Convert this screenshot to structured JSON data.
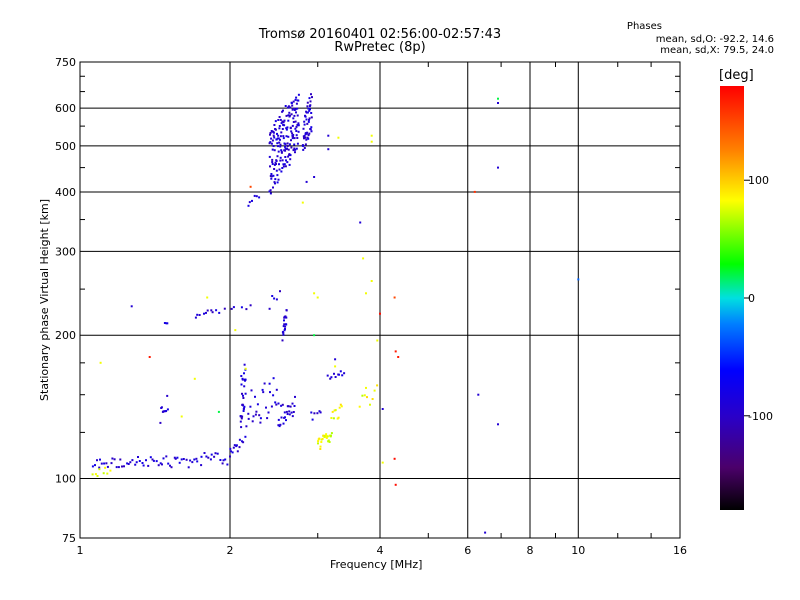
{
  "chart_data": {
    "type": "scatter",
    "title": "Tromsø 20160401 02:56:00-02:57:43",
    "subtitle": "RwPretec (8p)",
    "xlabel": "Frequency [MHz]",
    "ylabel": "Stationary phase Virtual Height [km]",
    "x_scale": "log",
    "y_scale": "log",
    "xlim": [
      1,
      16
    ],
    "ylim": [
      75,
      750
    ],
    "x_ticks": [
      "1",
      "2",
      "4",
      "6",
      "8",
      "10",
      "16"
    ],
    "x_tick_values": [
      1,
      2,
      4,
      6,
      8,
      10,
      16
    ],
    "y_ticks": [
      "75",
      "100",
      "200",
      "300",
      "400",
      "500",
      "600",
      "750"
    ],
    "y_tick_values": [
      75,
      100,
      200,
      300,
      400,
      500,
      600,
      750
    ],
    "grid": true,
    "colorbar": {
      "label": "[deg]",
      "ticks": [
        "100",
        "0",
        "-100"
      ],
      "tick_values": [
        100,
        0,
        -100
      ],
      "range": [
        -180,
        180
      ]
    },
    "stats": {
      "title": "Phases",
      "line1": "mean, sd,O: -92.2, 14.6",
      "line2": "mean, sd,X: 79.5, 24.0"
    },
    "series": [
      {
        "mode": "O",
        "phase_deg": -92,
        "segments": [
          {
            "x0": 1.06,
            "x1": 2.0,
            "y0": 104,
            "y1": 113,
            "n": 70,
            "spread": 3
          },
          {
            "x0": 2.0,
            "x1": 2.12,
            "y0": 113,
            "y1": 120,
            "n": 12,
            "spread": 4
          },
          {
            "x0": 2.1,
            "x1": 2.15,
            "y0": 120,
            "y1": 185,
            "n": 30,
            "spread": 8
          },
          {
            "x0": 2.15,
            "x1": 2.5,
            "y0": 125,
            "y1": 165,
            "n": 30,
            "spread": 12
          },
          {
            "x0": 2.5,
            "x1": 2.7,
            "y0": 125,
            "y1": 145,
            "n": 25,
            "spread": 10
          },
          {
            "x0": 2.55,
            "x1": 2.6,
            "y0": 195,
            "y1": 230,
            "n": 20,
            "spread": 4
          },
          {
            "x0": 2.4,
            "x1": 2.75,
            "y0": 390,
            "y1": 650,
            "n": 180,
            "spread": 20
          },
          {
            "x0": 2.8,
            "x1": 2.92,
            "y0": 470,
            "y1": 650,
            "n": 50,
            "spread": 10
          },
          {
            "x0": 2.18,
            "x1": 2.28,
            "y0": 370,
            "y1": 400,
            "n": 6,
            "spread": 5
          },
          {
            "x0": 1.7,
            "x1": 1.9,
            "y0": 218,
            "y1": 228,
            "n": 10,
            "spread": 3
          },
          {
            "x0": 1.95,
            "x1": 2.2,
            "y0": 225,
            "y1": 232,
            "n": 6,
            "spread": 3
          },
          {
            "x0": 1.45,
            "x1": 1.5,
            "y0": 127,
            "y1": 152,
            "n": 10,
            "spread": 3
          },
          {
            "x0": 1.48,
            "x1": 1.5,
            "y0": 210,
            "y1": 214,
            "n": 3,
            "spread": 1
          },
          {
            "x0": 2.4,
            "x1": 2.52,
            "y0": 218,
            "y1": 252,
            "n": 5,
            "spread": 3
          },
          {
            "x0": 3.15,
            "x1": 3.4,
            "y0": 160,
            "y1": 168,
            "n": 10,
            "spread": 3
          },
          {
            "x0": 2.9,
            "x1": 3.05,
            "y0": 133,
            "y1": 142,
            "n": 6,
            "spread": 2
          }
        ],
        "points": [
          [
            1.27,
            230
          ],
          [
            3.15,
            525
          ],
          [
            3.15,
            492
          ],
          [
            3.65,
            345
          ],
          [
            4.05,
            140
          ],
          [
            6.5,
            77
          ],
          [
            6.9,
            450
          ],
          [
            6.9,
            615
          ],
          [
            6.9,
            130
          ],
          [
            6.3,
            150
          ],
          [
            3.25,
            178
          ],
          [
            2.85,
            420
          ],
          [
            2.95,
            430
          ]
        ]
      },
      {
        "mode": "X",
        "phase_deg": 80,
        "segments": [
          {
            "x0": 1.06,
            "x1": 1.15,
            "y0": 101,
            "y1": 105,
            "n": 8,
            "spread": 2
          },
          {
            "x0": 3.0,
            "x1": 3.2,
            "y0": 115,
            "y1": 128,
            "n": 25,
            "spread": 3
          },
          {
            "x0": 3.2,
            "x1": 3.35,
            "y0": 128,
            "y1": 145,
            "n": 10,
            "spread": 3
          },
          {
            "x0": 3.65,
            "x1": 3.95,
            "y0": 140,
            "y1": 160,
            "n": 8,
            "spread": 4
          }
        ],
        "points": [
          [
            1.6,
            135
          ],
          [
            1.7,
            162
          ],
          [
            1.8,
            240
          ],
          [
            2.05,
            205
          ],
          [
            2.15,
            170
          ],
          [
            2.95,
            245
          ],
          [
            3.0,
            240
          ],
          [
            3.25,
            172
          ],
          [
            3.3,
            520
          ],
          [
            3.7,
            290
          ],
          [
            3.75,
            245
          ],
          [
            3.85,
            260
          ],
          [
            3.85,
            525
          ],
          [
            3.85,
            510
          ],
          [
            3.75,
            155
          ],
          [
            3.95,
            195
          ],
          [
            4.05,
            108
          ],
          [
            1.1,
            175
          ],
          [
            2.8,
            380
          ]
        ]
      },
      {
        "mode": "other",
        "points": [
          [
            1.38,
            180,
            170
          ],
          [
            4.0,
            222,
            175
          ],
          [
            4.28,
            240,
            150
          ],
          [
            4.3,
            185,
            170
          ],
          [
            4.35,
            180,
            170
          ],
          [
            4.28,
            110,
            175
          ],
          [
            4.3,
            97,
            175
          ],
          [
            6.2,
            400,
            160
          ],
          [
            10.0,
            262,
            -30
          ],
          [
            6.9,
            628,
            20
          ],
          [
            2.95,
            200,
            20
          ],
          [
            2.2,
            410,
            150
          ],
          [
            1.9,
            138,
            20
          ]
        ]
      }
    ]
  }
}
